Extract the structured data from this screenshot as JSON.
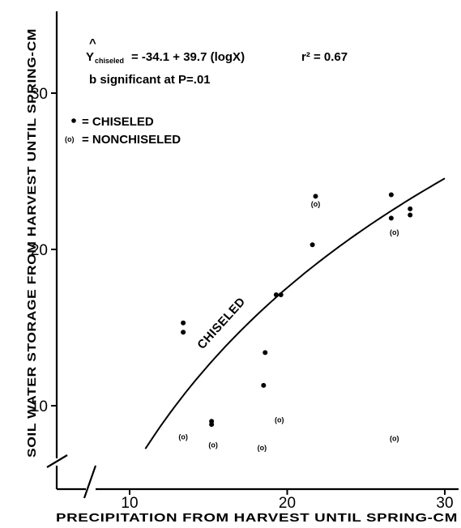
{
  "chart_data": {
    "type": "scatter",
    "xlabel": "PRECIPITATION FROM HARVEST UNTIL SPRING-CM",
    "ylabel": "SOIL WATER STORAGE FROM HARVEST UNTIL SPRING-CM",
    "xlim": [
      5.5,
      31
    ],
    "ylim": [
      5.5,
      35
    ],
    "x_ticks": [
      10,
      20,
      30
    ],
    "y_ticks": [
      10,
      20,
      30
    ],
    "x_tick_labels": [
      "10",
      "20",
      "30"
    ],
    "y_tick_labels": [
      "10",
      "20",
      "30"
    ],
    "axis_breaks": true,
    "grid": false,
    "equation": {
      "hat": "^",
      "y_symbol": "Y",
      "subscript": "chiseled",
      "body": "= -34.1 + 39.7 (logX)",
      "r2": "r² = 0.67",
      "note": "b significant at P=.01"
    },
    "legend_position": "top-left",
    "legend": [
      {
        "marker": "•",
        "label": "= CHISELED"
      },
      {
        "marker": "(o)",
        "label": "= NONCHISELED"
      }
    ],
    "fit_line": {
      "label": "CHISELED",
      "intercept": -34.1,
      "log_coefficient": 39.7,
      "x_range": [
        11,
        30
      ]
    },
    "series": [
      {
        "name": "CHISELED",
        "marker": "dot",
        "points": [
          {
            "x": 13.4,
            "y": 15.3
          },
          {
            "x": 13.4,
            "y": 14.7
          },
          {
            "x": 15.2,
            "y": 9.0
          },
          {
            "x": 15.2,
            "y": 8.8
          },
          {
            "x": 18.6,
            "y": 13.4
          },
          {
            "x": 18.5,
            "y": 11.3
          },
          {
            "x": 19.3,
            "y": 17.1
          },
          {
            "x": 19.6,
            "y": 17.1
          },
          {
            "x": 21.6,
            "y": 20.3
          },
          {
            "x": 21.8,
            "y": 23.4
          },
          {
            "x": 26.6,
            "y": 23.5
          },
          {
            "x": 26.6,
            "y": 22.0
          },
          {
            "x": 27.8,
            "y": 22.6
          },
          {
            "x": 27.8,
            "y": 22.2
          }
        ]
      },
      {
        "name": "NONCHISELED",
        "marker": "(o)",
        "points": [
          {
            "x": 13.4,
            "y": 8.0
          },
          {
            "x": 15.3,
            "y": 7.5
          },
          {
            "x": 18.4,
            "y": 7.3
          },
          {
            "x": 19.5,
            "y": 9.1
          },
          {
            "x": 21.8,
            "y": 22.9
          },
          {
            "x": 26.8,
            "y": 21.1
          },
          {
            "x": 26.8,
            "y": 7.9
          }
        ]
      }
    ]
  }
}
